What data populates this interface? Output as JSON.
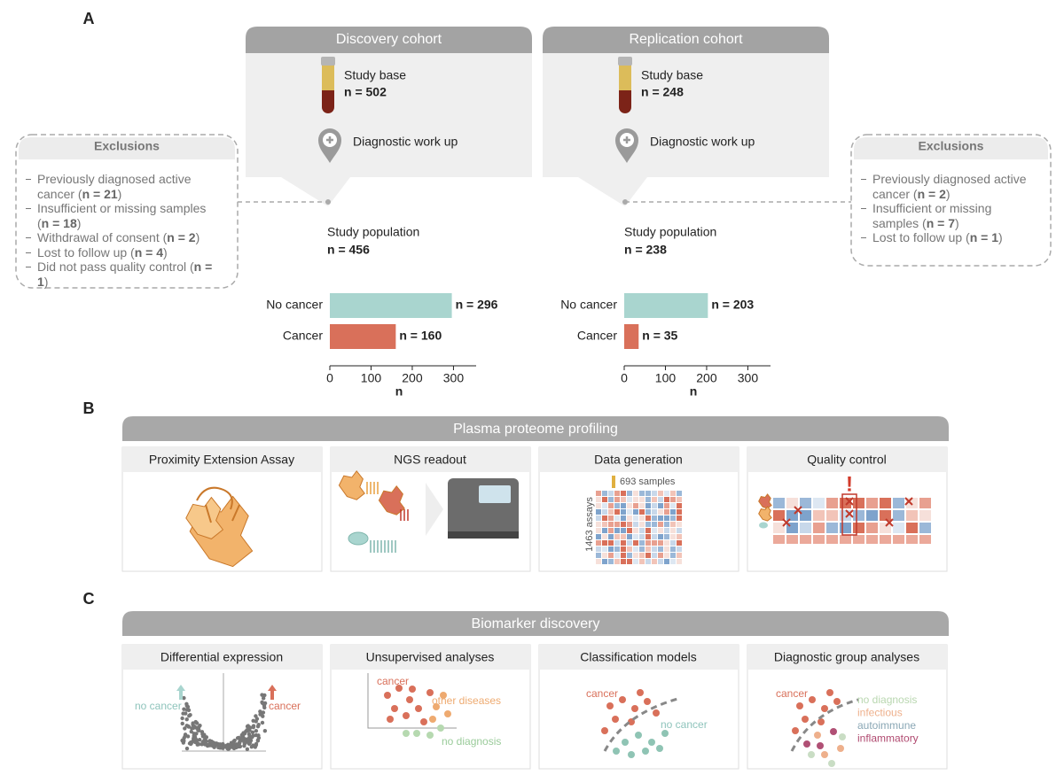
{
  "figure": {
    "panel_a": {
      "letter": "A"
    },
    "panel_b": {
      "letter": "B",
      "title": "Plasma proteome profiling",
      "steps": [
        "Proximity Extension Assay",
        "NGS readout",
        "Data generation",
        "Quality control"
      ],
      "samples_label": "693 samples",
      "assays_label": "1463 assays",
      "alert": "!"
    },
    "panel_c": {
      "letter": "C",
      "title": "Biomarker discovery",
      "steps": [
        "Differential expression",
        "Unsupervised analyses",
        "Classification models",
        "Diagnostic group analyses"
      ],
      "volcano": {
        "left": "no cancer",
        "right": "cancer"
      },
      "unsupervised": {
        "cancer": "cancer",
        "other": "other diseases",
        "none": "no diagnosis"
      },
      "classification": {
        "cancer": "cancer",
        "other": "no cancer"
      },
      "groups": {
        "cancer": "cancer",
        "labels": [
          "no diagnosis",
          "infectious",
          "autoimmune",
          "inflammatory"
        ]
      }
    }
  },
  "cohorts": [
    {
      "title": "Discovery cohort",
      "study_base": "Study base",
      "study_base_n": "n = 502",
      "workup": "Diagnostic work up",
      "population": "Study population",
      "population_n": "n = 456",
      "exclusions": {
        "title": "Exclusions",
        "items": [
          {
            "text": "Previously diagnosed active cancer (",
            "n": "n = 21",
            "end": ")"
          },
          {
            "text": "Insufficient or missing samples (",
            "n": "n = 18",
            "end": ")"
          },
          {
            "text": "Withdrawal of consent (",
            "n": "n = 2",
            "end": ")"
          },
          {
            "text": "Lost to follow up (",
            "n": "n = 4",
            "end": ")"
          },
          {
            "text": "Did not pass quality control (",
            "n": "n = 1",
            "end": ")"
          }
        ]
      }
    },
    {
      "title": "Replication cohort",
      "study_base": "Study base",
      "study_base_n": "n = 248",
      "workup": "Diagnostic work up",
      "population": "Study population",
      "population_n": "n = 238",
      "exclusions": {
        "title": "Exclusions",
        "items": [
          {
            "text": "Previously diagnosed active cancer (",
            "n": "n = 2",
            "end": ")"
          },
          {
            "text": "Insufficient or missing samples (",
            "n": "n = 7",
            "end": ")"
          },
          {
            "text": "Lost to follow up (",
            "n": "n = 1",
            "end": ")"
          }
        ]
      }
    }
  ],
  "chart_data": [
    {
      "type": "bar",
      "orientation": "horizontal",
      "categories": [
        "No cancer",
        "Cancer"
      ],
      "values": [
        296,
        160
      ],
      "value_labels": [
        "n = 296",
        "n = 160"
      ],
      "colors": [
        "#a9d5cf",
        "#d9705a"
      ],
      "xlim": [
        0,
        355
      ],
      "xticks": [
        0,
        100,
        200,
        300
      ],
      "xlabel": "n"
    },
    {
      "type": "bar",
      "orientation": "horizontal",
      "categories": [
        "No cancer",
        "Cancer"
      ],
      "values": [
        203,
        35
      ],
      "value_labels": [
        "n = 203",
        "n = 35"
      ],
      "colors": [
        "#a9d5cf",
        "#d9705a"
      ],
      "xlim": [
        0,
        355
      ],
      "xticks": [
        0,
        100,
        200,
        300
      ],
      "xlabel": "n"
    }
  ]
}
